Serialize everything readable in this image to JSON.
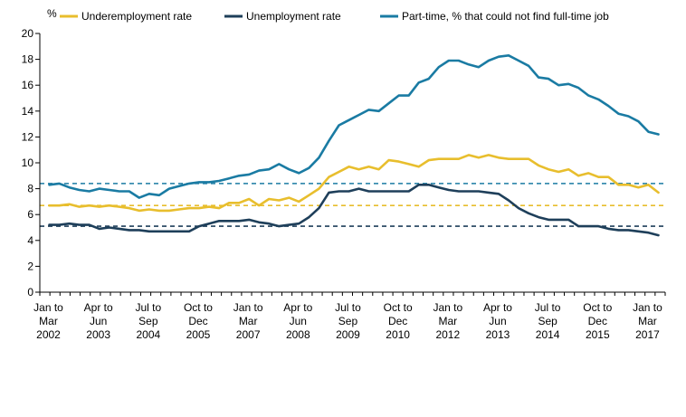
{
  "chart_data": {
    "type": "line",
    "y_unit": "%",
    "ylim": [
      0,
      20
    ],
    "yticks": [
      0,
      2,
      4,
      6,
      8,
      10,
      12,
      14,
      16,
      18,
      20
    ],
    "grid": false,
    "legend_position": "top",
    "x_tick_labels": [
      [
        "Jan to",
        "Mar",
        "2002"
      ],
      [
        "Apr to",
        "Jun",
        "2003"
      ],
      [
        "Jul to",
        "Sep",
        "2004"
      ],
      [
        "Oct to",
        "Dec",
        "2005"
      ],
      [
        "Jan to",
        "Mar",
        "2007"
      ],
      [
        "Apr to",
        "Jun",
        "2008"
      ],
      [
        "Jul to",
        "Sep",
        "2009"
      ],
      [
        "Oct to",
        "Dec",
        "2010"
      ],
      [
        "Jan to",
        "Mar",
        "2012"
      ],
      [
        "Apr to",
        "Jun",
        "2013"
      ],
      [
        "Jul to",
        "Sep",
        "2014"
      ],
      [
        "Oct to",
        "Dec",
        "2015"
      ],
      [
        "Jan to",
        "Mar",
        "2017"
      ]
    ],
    "x_tick_quarter_index": [
      0,
      5,
      10,
      15,
      20,
      25,
      30,
      35,
      40,
      45,
      50,
      55,
      60
    ],
    "series": [
      {
        "name": "Underemployment rate",
        "color": "#E8BE2D",
        "values": [
          6.7,
          6.7,
          6.8,
          6.6,
          6.7,
          6.6,
          6.7,
          6.6,
          6.5,
          6.3,
          6.4,
          6.3,
          6.3,
          6.4,
          6.5,
          6.5,
          6.6,
          6.5,
          6.9,
          6.9,
          7.2,
          6.7,
          7.2,
          7.1,
          7.3,
          7.0,
          7.5,
          8.0,
          8.9,
          9.3,
          9.7,
          9.5,
          9.7,
          9.5,
          10.2,
          10.1,
          9.9,
          9.7,
          10.2,
          10.3,
          10.3,
          10.3,
          10.6,
          10.4,
          10.6,
          10.4,
          10.3,
          10.3,
          10.3,
          9.8,
          9.5,
          9.3,
          9.5,
          9.0,
          9.2,
          8.9,
          8.9,
          8.3,
          8.3,
          8.1,
          8.3,
          7.7
        ]
      },
      {
        "name": "Unemployment rate",
        "color": "#1E3F5A",
        "values": [
          5.2,
          5.2,
          5.3,
          5.2,
          5.2,
          4.9,
          5.0,
          4.9,
          4.8,
          4.8,
          4.7,
          4.7,
          4.7,
          4.7,
          4.7,
          5.1,
          5.3,
          5.5,
          5.5,
          5.5,
          5.6,
          5.4,
          5.3,
          5.1,
          5.2,
          5.3,
          5.8,
          6.5,
          7.7,
          7.8,
          7.8,
          8.0,
          7.8,
          7.8,
          7.8,
          7.8,
          7.8,
          8.3,
          8.3,
          8.1,
          7.9,
          7.8,
          7.8,
          7.8,
          7.7,
          7.6,
          7.1,
          6.5,
          6.1,
          5.8,
          5.6,
          5.6,
          5.6,
          5.1,
          5.1,
          5.1,
          4.9,
          4.8,
          4.8,
          4.7,
          4.6,
          4.4
        ]
      },
      {
        "name": "Part-time, % that could not find full-time job",
        "color": "#1A7BA3",
        "values": [
          8.3,
          8.4,
          8.1,
          7.9,
          7.8,
          8.0,
          7.9,
          7.8,
          7.8,
          7.3,
          7.6,
          7.5,
          8.0,
          8.2,
          8.4,
          8.5,
          8.5,
          8.6,
          8.8,
          9.0,
          9.1,
          9.4,
          9.5,
          9.9,
          9.5,
          9.2,
          9.6,
          10.4,
          11.7,
          12.9,
          13.3,
          13.7,
          14.1,
          14.0,
          14.6,
          15.2,
          15.2,
          16.2,
          16.5,
          17.4,
          17.9,
          17.9,
          17.6,
          17.4,
          17.9,
          18.2,
          18.3,
          17.9,
          17.5,
          16.6,
          16.5,
          16.0,
          16.1,
          15.8,
          15.2,
          14.9,
          14.4,
          13.8,
          13.6,
          13.2,
          12.4,
          12.2
        ]
      }
    ],
    "reference_lines": [
      {
        "series": "Part-time, % that could not find full-time job",
        "value": 8.4,
        "color": "#1A7BA3",
        "style": "dashed"
      },
      {
        "series": "Underemployment rate",
        "value": 6.7,
        "color": "#E8BE2D",
        "style": "dashed"
      },
      {
        "series": "Unemployment rate",
        "value": 5.1,
        "color": "#1E3F5A",
        "style": "dashed"
      }
    ]
  }
}
